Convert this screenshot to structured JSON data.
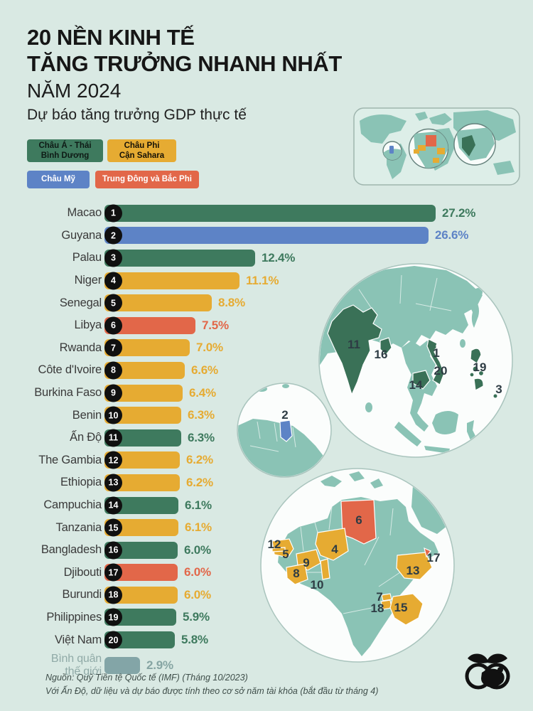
{
  "page": {
    "title_line1": "20 NỀN KINH TẾ",
    "title_line2": "TĂNG TRƯỞNG NHANH NHẤT",
    "title_line3": "NĂM 2024",
    "subtitle": "Dự báo tăng trưởng GDP thực tế",
    "footer_line1": "Nguồn: Quỹ Tiền tệ Quốc tế (IMF) (Tháng 10/2023)",
    "footer_line2": "Với Ấn Độ, dữ liệu và dự báo được tính theo cơ sở năm tài khóa (bắt đầu từ tháng 4)"
  },
  "legend": [
    {
      "label": "Châu Á - Thái\nBình Dương",
      "region": "asia_pacific"
    },
    {
      "label": "Châu Phi\nCận Sahara",
      "region": "africa_sub"
    },
    {
      "label": "Châu Mỹ",
      "region": "americas"
    },
    {
      "label": "Trung Đông và Bắc Phi",
      "region": "mena"
    }
  ],
  "colors": {
    "asia_pacific": "#3e7a5e",
    "africa_sub": "#e6ab32",
    "americas": "#5d83c6",
    "mena": "#e26749",
    "world": "#83a5a7",
    "world_text": "#86a5a3",
    "background": "#d9e9e3",
    "map_land": "#8ac3b5",
    "map_highlight_green": "#3a7157"
  },
  "chart_data": {
    "type": "bar",
    "title": "20 nền kinh tế tăng trưởng nhanh nhất năm 2024",
    "unit": "%",
    "xlim": [
      0,
      27.2
    ],
    "items": [
      {
        "rank": 1,
        "label": "Macao",
        "value": 27.2,
        "display": "27.2%",
        "region": "asia_pacific"
      },
      {
        "rank": 2,
        "label": "Guyana",
        "value": 26.6,
        "display": "26.6%",
        "region": "americas"
      },
      {
        "rank": 3,
        "label": "Palau",
        "value": 12.4,
        "display": "12.4%",
        "region": "asia_pacific"
      },
      {
        "rank": 4,
        "label": "Niger",
        "value": 11.1,
        "display": "11.1%",
        "region": "africa_sub"
      },
      {
        "rank": 5,
        "label": "Senegal",
        "value": 8.8,
        "display": "8.8%",
        "region": "africa_sub"
      },
      {
        "rank": 6,
        "label": "Libya",
        "value": 7.5,
        "display": "7.5%",
        "region": "mena"
      },
      {
        "rank": 7,
        "label": "Rwanda",
        "value": 7.0,
        "display": "7.0%",
        "region": "africa_sub"
      },
      {
        "rank": 8,
        "label": "Côte d'Ivoire",
        "value": 6.6,
        "display": "6.6%",
        "region": "africa_sub"
      },
      {
        "rank": 9,
        "label": "Burkina Faso",
        "value": 6.4,
        "display": "6.4%",
        "region": "africa_sub"
      },
      {
        "rank": 10,
        "label": "Benin",
        "value": 6.3,
        "display": "6.3%",
        "region": "africa_sub"
      },
      {
        "rank": 11,
        "label": "Ấn Độ",
        "value": 6.3,
        "display": "6.3%",
        "region": "asia_pacific"
      },
      {
        "rank": 12,
        "label": "The Gambia",
        "value": 6.2,
        "display": "6.2%",
        "region": "africa_sub"
      },
      {
        "rank": 13,
        "label": "Ethiopia",
        "value": 6.2,
        "display": "6.2%",
        "region": "africa_sub"
      },
      {
        "rank": 14,
        "label": "Campuchia",
        "value": 6.1,
        "display": "6.1%",
        "region": "asia_pacific"
      },
      {
        "rank": 15,
        "label": "Tanzania",
        "value": 6.1,
        "display": "6.1%",
        "region": "africa_sub"
      },
      {
        "rank": 16,
        "label": "Bangladesh",
        "value": 6.0,
        "display": "6.0%",
        "region": "asia_pacific"
      },
      {
        "rank": 17,
        "label": "Djibouti",
        "value": 6.0,
        "display": "6.0%",
        "region": "mena"
      },
      {
        "rank": 18,
        "label": "Burundi",
        "value": 6.0,
        "display": "6.0%",
        "region": "africa_sub"
      },
      {
        "rank": 19,
        "label": "Philippines",
        "value": 5.9,
        "display": "5.9%",
        "region": "asia_pacific"
      },
      {
        "rank": 20,
        "label": "Việt Nam",
        "value": 5.8,
        "display": "5.8%",
        "region": "asia_pacific"
      }
    ],
    "world_average": {
      "label": "Bình quân\nthế giới",
      "value": 2.9,
      "display": "2.9%",
      "region": "world"
    }
  },
  "maps": {
    "asia": {
      "markers": [
        "11",
        "16",
        "1",
        "20",
        "14",
        "19",
        "3"
      ]
    },
    "americas": {
      "markers": [
        "2"
      ]
    },
    "africa": {
      "markers": [
        "6",
        "4",
        "12",
        "5",
        "9",
        "8",
        "10",
        "17",
        "13",
        "7",
        "18",
        "15"
      ]
    }
  }
}
